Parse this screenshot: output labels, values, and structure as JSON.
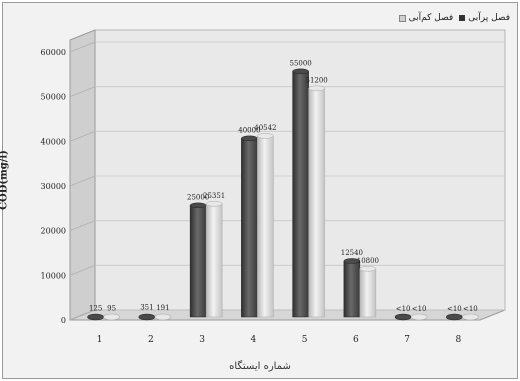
{
  "chart_data": {
    "type": "bar",
    "categories": [
      "1",
      "2",
      "3",
      "4",
      "5",
      "6",
      "7",
      "8"
    ],
    "series": [
      {
        "name": "فصل پرآبی",
        "values": [
          125,
          351,
          25000,
          40000,
          55000,
          12540,
          10,
          10
        ],
        "labels": [
          "125",
          "351",
          "25000",
          "40000",
          "55000",
          "12540",
          "<10",
          "<10"
        ]
      },
      {
        "name": "فصل کم‌آبی",
        "values": [
          95,
          191,
          25351,
          40542,
          51200,
          10800,
          10,
          10
        ],
        "labels": [
          "95",
          "191",
          "25351",
          "40542",
          "51200",
          "10800",
          "<10",
          "<10"
        ]
      }
    ],
    "ylabel": "COD(mg/l)",
    "xlabel": "شماره ایستگاه",
    "ylim": [
      0,
      60000
    ],
    "yticks": [
      "0",
      "10000",
      "20000",
      "30000",
      "40000",
      "50000",
      "60000"
    ],
    "grid": true,
    "legend": "top-right",
    "colors": {
      "series1": "#555555",
      "series2": "#d6d6d6",
      "wall": "#e6e6e6",
      "floor": "#d8d8d8"
    }
  }
}
